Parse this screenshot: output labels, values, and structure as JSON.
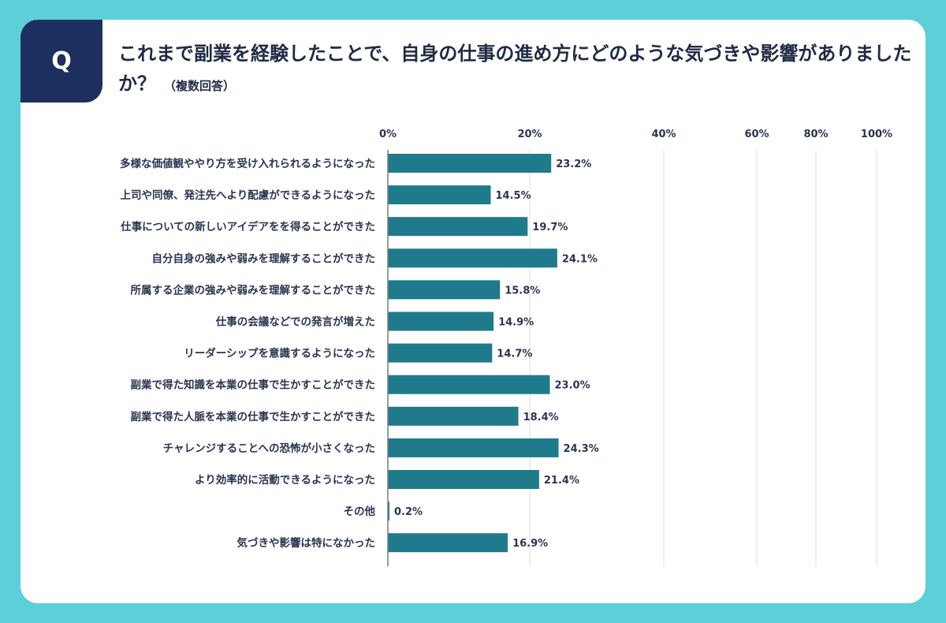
{
  "question": {
    "badge": "Q",
    "title": "これまで副業を経験したことで、自身の仕事の進め方にどのような気づきや影響がありましたか？",
    "note": "（複数回答）"
  },
  "colors": {
    "background": "#5ccfd9",
    "badge": "#1d2f5e",
    "bar": "#1f7a8c"
  },
  "chart_data": {
    "type": "bar",
    "orientation": "horizontal",
    "categories": [
      "多様な価値観ややり方を受け入れられるようになった",
      "上司や同僚、発注先へより配慮ができるようになった",
      "仕事についての新しいアイデアをを得ることができた",
      "自分自身の強みや弱みを理解することができた",
      "所属する企業の強みや弱みを理解することができた",
      "仕事の会議などでの発言が増えた",
      "リーダーシップを意識するようになった",
      "副業で得た知識を本業の仕事で生かすことができた",
      "副業で得た人脈を本業の仕事で生かすことができた",
      "チャレンジすることへの恐怖が小さくなった",
      "より効率的に活動できるようになった",
      "その他",
      "気づきや影響は特になかった"
    ],
    "values": [
      23.2,
      14.5,
      19.7,
      24.1,
      15.8,
      14.9,
      14.7,
      23.0,
      18.4,
      24.3,
      21.4,
      0.2,
      16.9
    ],
    "value_labels": [
      "23.2%",
      "14.5%",
      "19.7%",
      "24.1%",
      "15.8%",
      "14.9%",
      "14.7%",
      "23.0%",
      "18.4%",
      "24.3%",
      "21.4%",
      "0.2%",
      "16.9%"
    ],
    "ticks": [
      0,
      20,
      40,
      60,
      80,
      100
    ],
    "tick_labels": [
      "0%",
      "20%",
      "40%",
      "60%",
      "80%",
      "100%"
    ],
    "xlim": [
      0,
      100
    ],
    "grid": true
  }
}
